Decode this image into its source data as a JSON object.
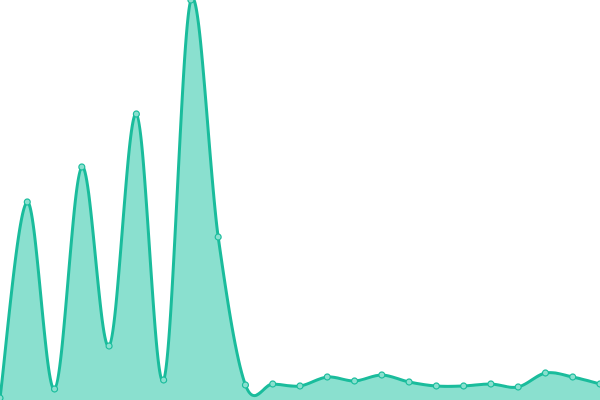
{
  "chart_data": {
    "type": "area",
    "title": "",
    "xlabel": "",
    "ylabel": "",
    "x": [
      0,
      1,
      2,
      3,
      4,
      5,
      6,
      7,
      8,
      9,
      10,
      11,
      12,
      13,
      14,
      15,
      16,
      17,
      18,
      19,
      20,
      21,
      22
    ],
    "values": [
      2,
      198,
      11,
      233,
      54,
      286,
      20,
      400,
      163,
      15,
      16,
      14,
      23,
      19,
      25,
      18,
      14,
      14,
      16,
      13,
      27,
      23,
      16
    ],
    "ylim": [
      0,
      400
    ],
    "xlim": [
      0,
      22
    ],
    "grid": false,
    "axes_visible": false,
    "legend": "none",
    "curve": "smooth",
    "colors": {
      "line": "#1abc9c",
      "fill": "#8ae0cf",
      "point_fill": "#8ae0cf",
      "point_stroke": "#1abc9c"
    }
  }
}
